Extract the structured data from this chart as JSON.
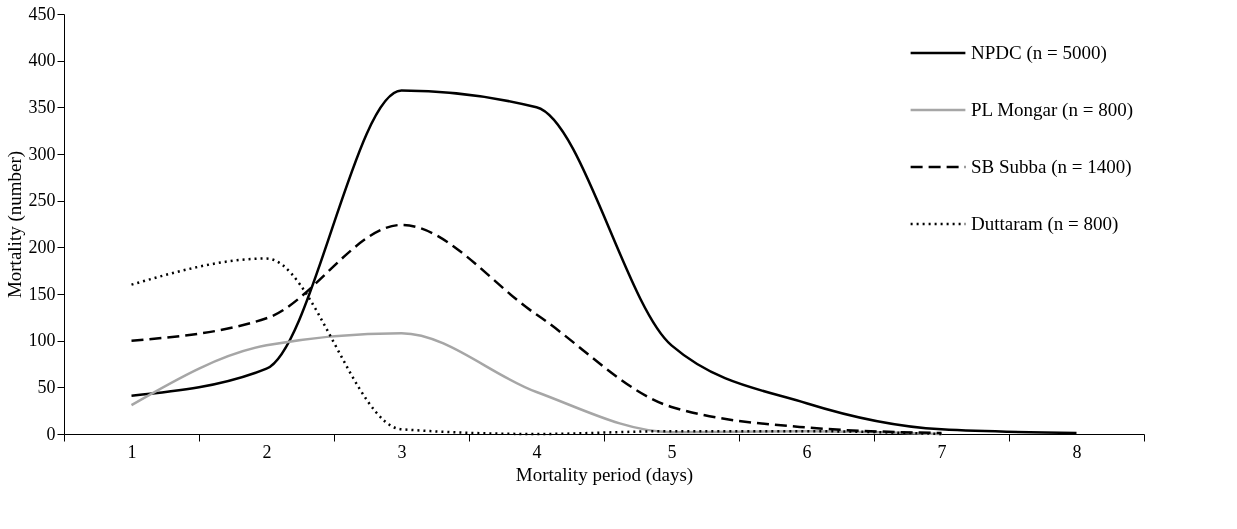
{
  "chart_data": {
    "type": "line",
    "xlabel": "Mortality period (days)",
    "ylabel": "Mortality (number)",
    "categories": [
      "1",
      "2",
      "3",
      "4",
      "5",
      "6",
      "7",
      "8"
    ],
    "ylim": [
      0,
      450
    ],
    "yticks": [
      0,
      50,
      100,
      150,
      200,
      250,
      300,
      350,
      400,
      450
    ],
    "grid": false,
    "legend": "top right",
    "marker": "none",
    "series": [
      {
        "name": "NPDC (n = 5000)",
        "color": "#000000",
        "line_style": "solid",
        "values": [
          41,
          70,
          368,
          350,
          95,
          33,
          5,
          1
        ]
      },
      {
        "name": "PL Mongar (n = 800)",
        "color": "#a6a6a6",
        "line_style": "solid",
        "values": [
          31,
          95,
          108,
          45,
          2,
          3,
          0,
          null
        ]
      },
      {
        "name": "SB Subba (n = 1400)",
        "color": "#000000",
        "line_style": "dashed",
        "values": [
          100,
          124,
          224,
          128,
          29,
          7,
          1,
          null
        ]
      },
      {
        "name": "Duttaram (n = 800)",
        "color": "#000000",
        "line_style": "dotted",
        "values": [
          160,
          188,
          5,
          0,
          3,
          3,
          0,
          null
        ]
      }
    ]
  }
}
